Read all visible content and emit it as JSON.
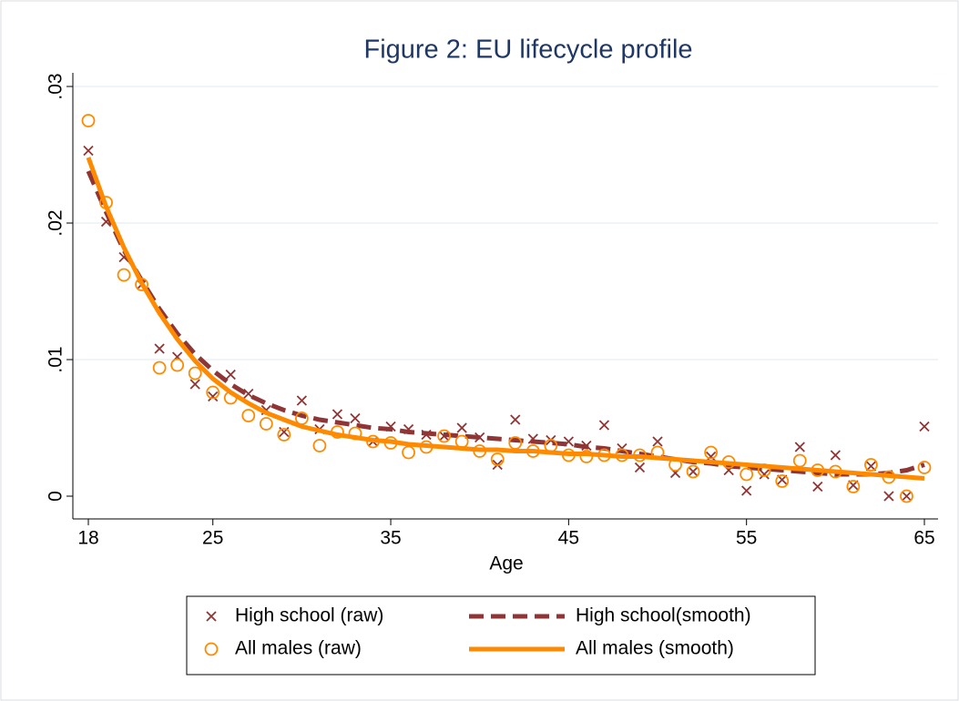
{
  "chart_data": {
    "type": "line",
    "title": "Figure 2: EU lifecycle profile",
    "x_label": "Age",
    "x": [
      18,
      19,
      20,
      21,
      22,
      23,
      24,
      25,
      26,
      27,
      28,
      29,
      30,
      31,
      32,
      33,
      34,
      35,
      36,
      37,
      38,
      39,
      40,
      41,
      42,
      43,
      44,
      45,
      46,
      47,
      48,
      49,
      50,
      51,
      52,
      53,
      54,
      55,
      56,
      57,
      58,
      59,
      60,
      61,
      62,
      63,
      64,
      65
    ],
    "xlim": [
      18,
      65
    ],
    "xticks": [
      18,
      25,
      35,
      45,
      55,
      65
    ],
    "ylim": [
      0,
      0.03
    ],
    "yticks": [
      0,
      {
        "value": 0.01,
        "label": ".01"
      },
      {
        "value": 0.02,
        "label": ".02"
      },
      {
        "value": 0.03,
        "label": ".03"
      }
    ],
    "grid": true,
    "series": [
      {
        "name": "High school (raw)",
        "color": "#903535",
        "mode": "markers",
        "marker": "x",
        "values": [
          0.0253,
          0.0201,
          0.0175,
          0.0155,
          0.0108,
          0.0102,
          0.0082,
          0.0073,
          0.0089,
          0.0075,
          0.0063,
          0.0047,
          0.007,
          0.0049,
          0.006,
          0.0057,
          0.004,
          0.0051,
          0.0049,
          0.0045,
          0.0044,
          0.005,
          0.0043,
          0.0023,
          0.0056,
          0.0042,
          0.0041,
          0.004,
          0.0037,
          0.0052,
          0.0035,
          0.0021,
          0.004,
          0.0017,
          0.0018,
          0.0029,
          0.0019,
          0.0004,
          0.0016,
          0.0012,
          0.0036,
          0.0007,
          0.003,
          0.0008,
          0.0022,
          0,
          0,
          0.0051
        ]
      },
      {
        "name": "High school(smooth)",
        "color": "#903535",
        "mode": "line",
        "dash": true,
        "values": [
          0.0238,
          0.0208,
          0.018,
          0.0158,
          0.0137,
          0.0119,
          0.0104,
          0.0092,
          0.0082,
          0.0074,
          0.0068,
          0.0063,
          0.0059,
          0.0056,
          0.0054,
          0.0052,
          0.005,
          0.0049,
          0.0047,
          0.0046,
          0.0045,
          0.0044,
          0.0043,
          0.0042,
          0.0041,
          0.004,
          0.0039,
          0.0038,
          0.0036,
          0.0035,
          0.0033,
          0.0031,
          0.0029,
          0.0027,
          0.0025,
          0.0024,
          0.0022,
          0.0021,
          0.002,
          0.0019,
          0.0018,
          0.0017,
          0.0016,
          0.0016,
          0.0016,
          0.0017,
          0.0019,
          0.0023
        ]
      },
      {
        "name": "All males (raw)",
        "color": "#ff8a00",
        "mode": "markers",
        "marker": "circle",
        "values": [
          0.0275,
          0.0215,
          0.0162,
          0.0155,
          0.0094,
          0.0096,
          0.009,
          0.0076,
          0.0072,
          0.0059,
          0.0053,
          0.0045,
          0.0057,
          0.0037,
          0.0047,
          0.0046,
          0.004,
          0.0039,
          0.0032,
          0.0036,
          0.0044,
          0.004,
          0.0033,
          0.0027,
          0.0039,
          0.0033,
          0.0037,
          0.003,
          0.0029,
          0.003,
          0.003,
          0.003,
          0.0032,
          0.0023,
          0.0018,
          0.0032,
          0.0025,
          0.0016,
          0.0019,
          0.0011,
          0.0026,
          0.0019,
          0.0018,
          0.0007,
          0.0023,
          0.0014,
          0,
          0.0021
        ]
      },
      {
        "name": "All males (smooth)",
        "color": "#ff8a00",
        "mode": "line",
        "dash": false,
        "values": [
          0.0248,
          0.0212,
          0.0182,
          0.0156,
          0.0134,
          0.0115,
          0.0099,
          0.0086,
          0.0076,
          0.0068,
          0.0061,
          0.0056,
          0.0051,
          0.0048,
          0.0045,
          0.0043,
          0.0041,
          0.004,
          0.0038,
          0.0037,
          0.0036,
          0.0035,
          0.0034,
          0.0034,
          0.0033,
          0.0033,
          0.0032,
          0.0031,
          0.0031,
          0.003,
          0.0029,
          0.0029,
          0.0028,
          0.0027,
          0.0026,
          0.0025,
          0.0024,
          0.0023,
          0.0022,
          0.0021,
          0.002,
          0.0019,
          0.0018,
          0.0017,
          0.0016,
          0.0015,
          0.0014,
          0.0013
        ]
      }
    ]
  }
}
